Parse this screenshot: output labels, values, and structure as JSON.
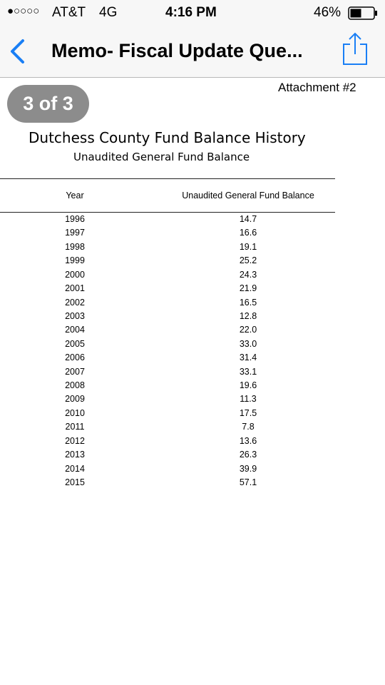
{
  "status_bar": {
    "signal": "●○○○○",
    "carrier": "AT&T",
    "network": "4G",
    "time": "4:16 PM",
    "battery": "46%"
  },
  "nav_bar": {
    "title": "Memo- Fiscal Update Que..."
  },
  "page_badge": "3 of 3",
  "document": {
    "attachment": "Attachment #2",
    "title": "Dutchess County Fund Balance History",
    "subtitle": "Unaudited General Fund Balance",
    "table": {
      "columns": [
        "Year",
        "Unaudited  General Fund Balance"
      ],
      "rows": [
        [
          "1996",
          "14.7"
        ],
        [
          "1997",
          "16.6"
        ],
        [
          "1998",
          "19.1"
        ],
        [
          "1999",
          "25.2"
        ],
        [
          "2000",
          "24.3"
        ],
        [
          "2001",
          "21.9"
        ],
        [
          "2002",
          "16.5"
        ],
        [
          "2003",
          "12.8"
        ],
        [
          "2004",
          "22.0"
        ],
        [
          "2005",
          "33.0"
        ],
        [
          "2006",
          "31.4"
        ],
        [
          "2007",
          "33.1"
        ],
        [
          "2008",
          "19.6"
        ],
        [
          "2009",
          "11.3"
        ],
        [
          "2010",
          "17.5"
        ],
        [
          "2011",
          "7.8"
        ],
        [
          "2012",
          "13.6"
        ],
        [
          "2013",
          "26.3"
        ],
        [
          "2014",
          "39.9"
        ],
        [
          "2015",
          "57.1"
        ]
      ]
    }
  }
}
